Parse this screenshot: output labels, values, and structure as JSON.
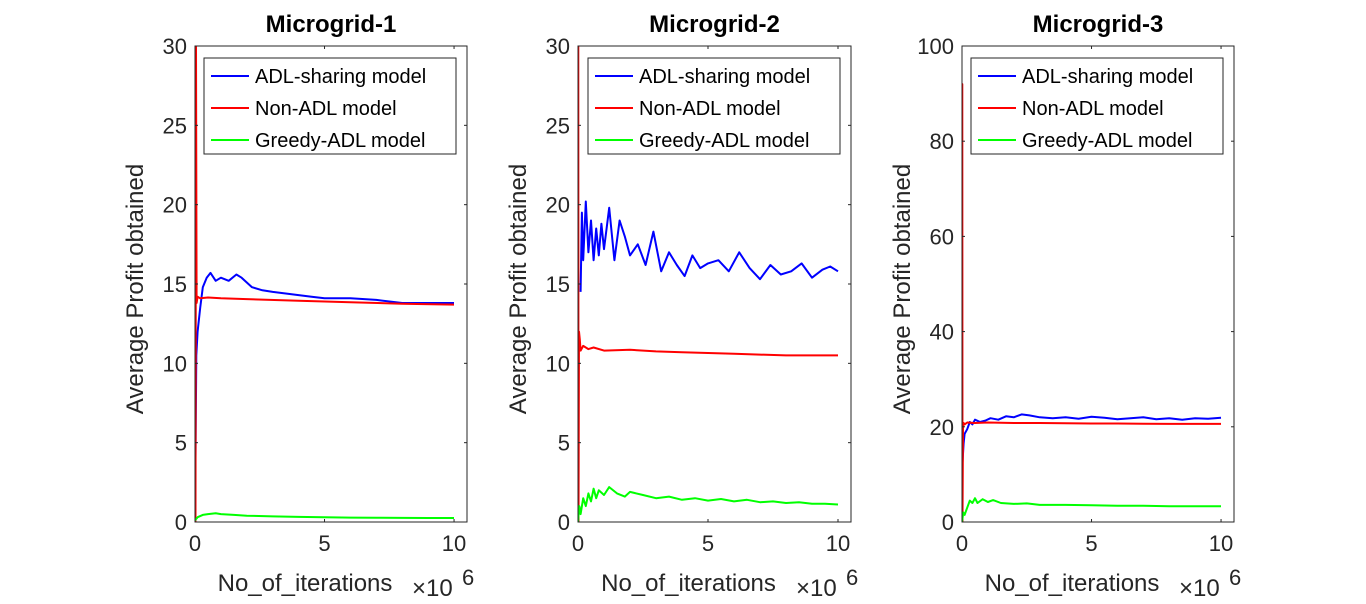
{
  "chart_data": [
    {
      "type": "line",
      "title": "Microgrid-1",
      "xlabel": "No_of_iterations",
      "x_exponent_label": "×10",
      "x_exponent_power": "6",
      "ylabel": "Average Profit obtained",
      "xlim": [
        0,
        10.5
      ],
      "ylim": [
        0,
        30
      ],
      "xticks": [
        0,
        5,
        10
      ],
      "yticks": [
        0,
        5,
        10,
        15,
        20,
        25,
        30
      ],
      "legend_position": "top-right",
      "series": [
        {
          "name": "ADL-sharing model",
          "color": "#0000ff",
          "x": [
            0,
            0.05,
            0.1,
            0.2,
            0.3,
            0.45,
            0.6,
            0.8,
            1.0,
            1.3,
            1.6,
            1.8,
            2.2,
            2.6,
            3.0,
            3.5,
            4.0,
            4.5,
            5.0,
            6.0,
            7.0,
            8.0,
            9.0,
            10.0
          ],
          "y": [
            0,
            10.5,
            12.0,
            13.5,
            14.8,
            15.4,
            15.7,
            15.2,
            15.4,
            15.2,
            15.6,
            15.4,
            14.8,
            14.6,
            14.5,
            14.4,
            14.3,
            14.2,
            14.1,
            14.1,
            14.0,
            13.8,
            13.8,
            13.8
          ]
        },
        {
          "name": "Non-ADL model",
          "color": "#ff0000",
          "x": [
            0,
            0.01,
            0.02,
            0.04,
            0.06,
            0.1,
            0.2,
            0.5,
            1,
            2,
            4,
            6,
            8,
            10
          ],
          "y": [
            0,
            30,
            0,
            30,
            13.8,
            14.2,
            14.1,
            14.15,
            14.1,
            14.05,
            13.95,
            13.85,
            13.75,
            13.7
          ]
        },
        {
          "name": "Greedy-ADL model",
          "color": "#00ff00",
          "x": [
            0,
            0.1,
            0.3,
            0.5,
            0.8,
            1.0,
            1.5,
            2,
            3,
            4,
            5,
            6,
            7,
            8,
            9,
            10
          ],
          "y": [
            0.1,
            0.3,
            0.45,
            0.5,
            0.55,
            0.5,
            0.45,
            0.4,
            0.35,
            0.32,
            0.3,
            0.28,
            0.27,
            0.26,
            0.25,
            0.25
          ]
        }
      ]
    },
    {
      "type": "line",
      "title": "Microgrid-2",
      "xlabel": "No_of_iterations",
      "x_exponent_label": "×10",
      "x_exponent_power": "6",
      "ylabel": "Average Profit obtained",
      "xlim": [
        0,
        10.5
      ],
      "ylim": [
        0,
        30
      ],
      "xticks": [
        0,
        5,
        10
      ],
      "yticks": [
        0,
        5,
        10,
        15,
        20,
        25,
        30
      ],
      "legend_position": "top-right",
      "series": [
        {
          "name": "ADL-sharing model",
          "color": "#0000ff",
          "x": [
            0.1,
            0.15,
            0.2,
            0.3,
            0.4,
            0.5,
            0.6,
            0.7,
            0.8,
            0.9,
            1.0,
            1.2,
            1.4,
            1.6,
            1.8,
            2.0,
            2.3,
            2.6,
            2.9,
            3.2,
            3.5,
            3.8,
            4.1,
            4.4,
            4.7,
            5.0,
            5.4,
            5.8,
            6.2,
            6.6,
            7.0,
            7.4,
            7.8,
            8.2,
            8.6,
            9.0,
            9.4,
            9.7,
            10.0
          ],
          "y": [
            14.5,
            19.5,
            16.5,
            20.2,
            17.0,
            19.0,
            16.5,
            18.5,
            16.8,
            18.8,
            17.2,
            19.8,
            16.5,
            19.0,
            18.0,
            16.8,
            17.5,
            16.2,
            18.3,
            15.8,
            17.0,
            16.2,
            15.5,
            16.8,
            16.0,
            16.3,
            16.5,
            15.8,
            17.0,
            16.0,
            15.3,
            16.2,
            15.6,
            15.8,
            16.3,
            15.4,
            15.9,
            16.1,
            15.8
          ]
        },
        {
          "name": "Non-ADL model",
          "color": "#ff0000",
          "x": [
            0,
            0.01,
            0.02,
            0.04,
            0.07,
            0.1,
            0.2,
            0.4,
            0.6,
            1,
            2,
            3,
            4,
            5,
            6,
            7,
            8,
            9,
            10
          ],
          "y": [
            0,
            30,
            0,
            12.0,
            11.5,
            10.8,
            11.1,
            10.9,
            11.0,
            10.8,
            10.85,
            10.75,
            10.7,
            10.65,
            10.6,
            10.55,
            10.5,
            10.5,
            10.5
          ]
        },
        {
          "name": "Greedy-ADL model",
          "color": "#00ff00",
          "x": [
            0,
            0.05,
            0.1,
            0.2,
            0.3,
            0.4,
            0.5,
            0.6,
            0.7,
            0.8,
            1.0,
            1.2,
            1.5,
            1.8,
            2.0,
            2.5,
            3.0,
            3.5,
            4.0,
            4.5,
            5.0,
            5.5,
            6.0,
            6.5,
            7.0,
            7.5,
            8.0,
            8.5,
            9.0,
            9.5,
            10.0
          ],
          "y": [
            0,
            1.0,
            0.5,
            1.5,
            1.0,
            1.8,
            1.3,
            2.1,
            1.5,
            2.0,
            1.7,
            2.2,
            1.8,
            1.6,
            1.9,
            1.7,
            1.5,
            1.6,
            1.4,
            1.5,
            1.35,
            1.45,
            1.3,
            1.4,
            1.25,
            1.3,
            1.2,
            1.25,
            1.15,
            1.15,
            1.1
          ]
        }
      ]
    },
    {
      "type": "line",
      "title": "Microgrid-3",
      "xlabel": "No_of_iterations",
      "x_exponent_label": "×10",
      "x_exponent_power": "6",
      "ylabel": "Average Profit obtained",
      "xlim": [
        0,
        10.5
      ],
      "ylim": [
        0,
        100
      ],
      "xticks": [
        0,
        5,
        10
      ],
      "yticks": [
        0,
        20,
        40,
        60,
        80,
        100
      ],
      "legend_position": "top-right",
      "series": [
        {
          "name": "ADL-sharing model",
          "color": "#0000ff",
          "x": [
            0.02,
            0.06,
            0.1,
            0.2,
            0.3,
            0.4,
            0.5,
            0.7,
            0.9,
            1.1,
            1.4,
            1.7,
            2.0,
            2.3,
            2.6,
            3.0,
            3.5,
            4.0,
            4.5,
            5.0,
            5.5,
            6.0,
            6.5,
            7.0,
            7.5,
            8.0,
            8.5,
            9.0,
            9.5,
            10.0
          ],
          "y": [
            12.5,
            16.5,
            18.5,
            19.5,
            21.0,
            20.5,
            21.5,
            21.0,
            21.3,
            21.8,
            21.5,
            22.2,
            22.0,
            22.6,
            22.4,
            22.0,
            21.8,
            22.0,
            21.7,
            22.1,
            21.9,
            21.6,
            21.8,
            22.0,
            21.6,
            21.8,
            21.5,
            21.8,
            21.7,
            21.9
          ]
        },
        {
          "name": "Non-ADL model",
          "color": "#ff0000",
          "x": [
            0,
            0.01,
            0.02,
            0.04,
            0.06,
            0.1,
            0.2,
            0.5,
            1,
            2,
            3,
            4,
            5,
            6,
            7,
            8,
            9,
            10
          ],
          "y": [
            0,
            92,
            0,
            20.0,
            20.8,
            20.5,
            20.9,
            20.8,
            20.9,
            20.8,
            20.8,
            20.75,
            20.7,
            20.7,
            20.65,
            20.6,
            20.6,
            20.6
          ]
        },
        {
          "name": "Greedy-ADL model",
          "color": "#00ff00",
          "x": [
            0,
            0.05,
            0.1,
            0.2,
            0.3,
            0.4,
            0.5,
            0.6,
            0.8,
            1.0,
            1.2,
            1.5,
            2.0,
            2.5,
            3.0,
            4.0,
            5.0,
            6.0,
            7.0,
            8.0,
            9.0,
            10.0
          ],
          "y": [
            0,
            2.0,
            1.5,
            3.0,
            4.5,
            4.0,
            5.0,
            4.0,
            4.8,
            4.2,
            4.6,
            4.0,
            3.8,
            3.9,
            3.6,
            3.6,
            3.5,
            3.4,
            3.4,
            3.3,
            3.3,
            3.3
          ]
        }
      ]
    }
  ]
}
